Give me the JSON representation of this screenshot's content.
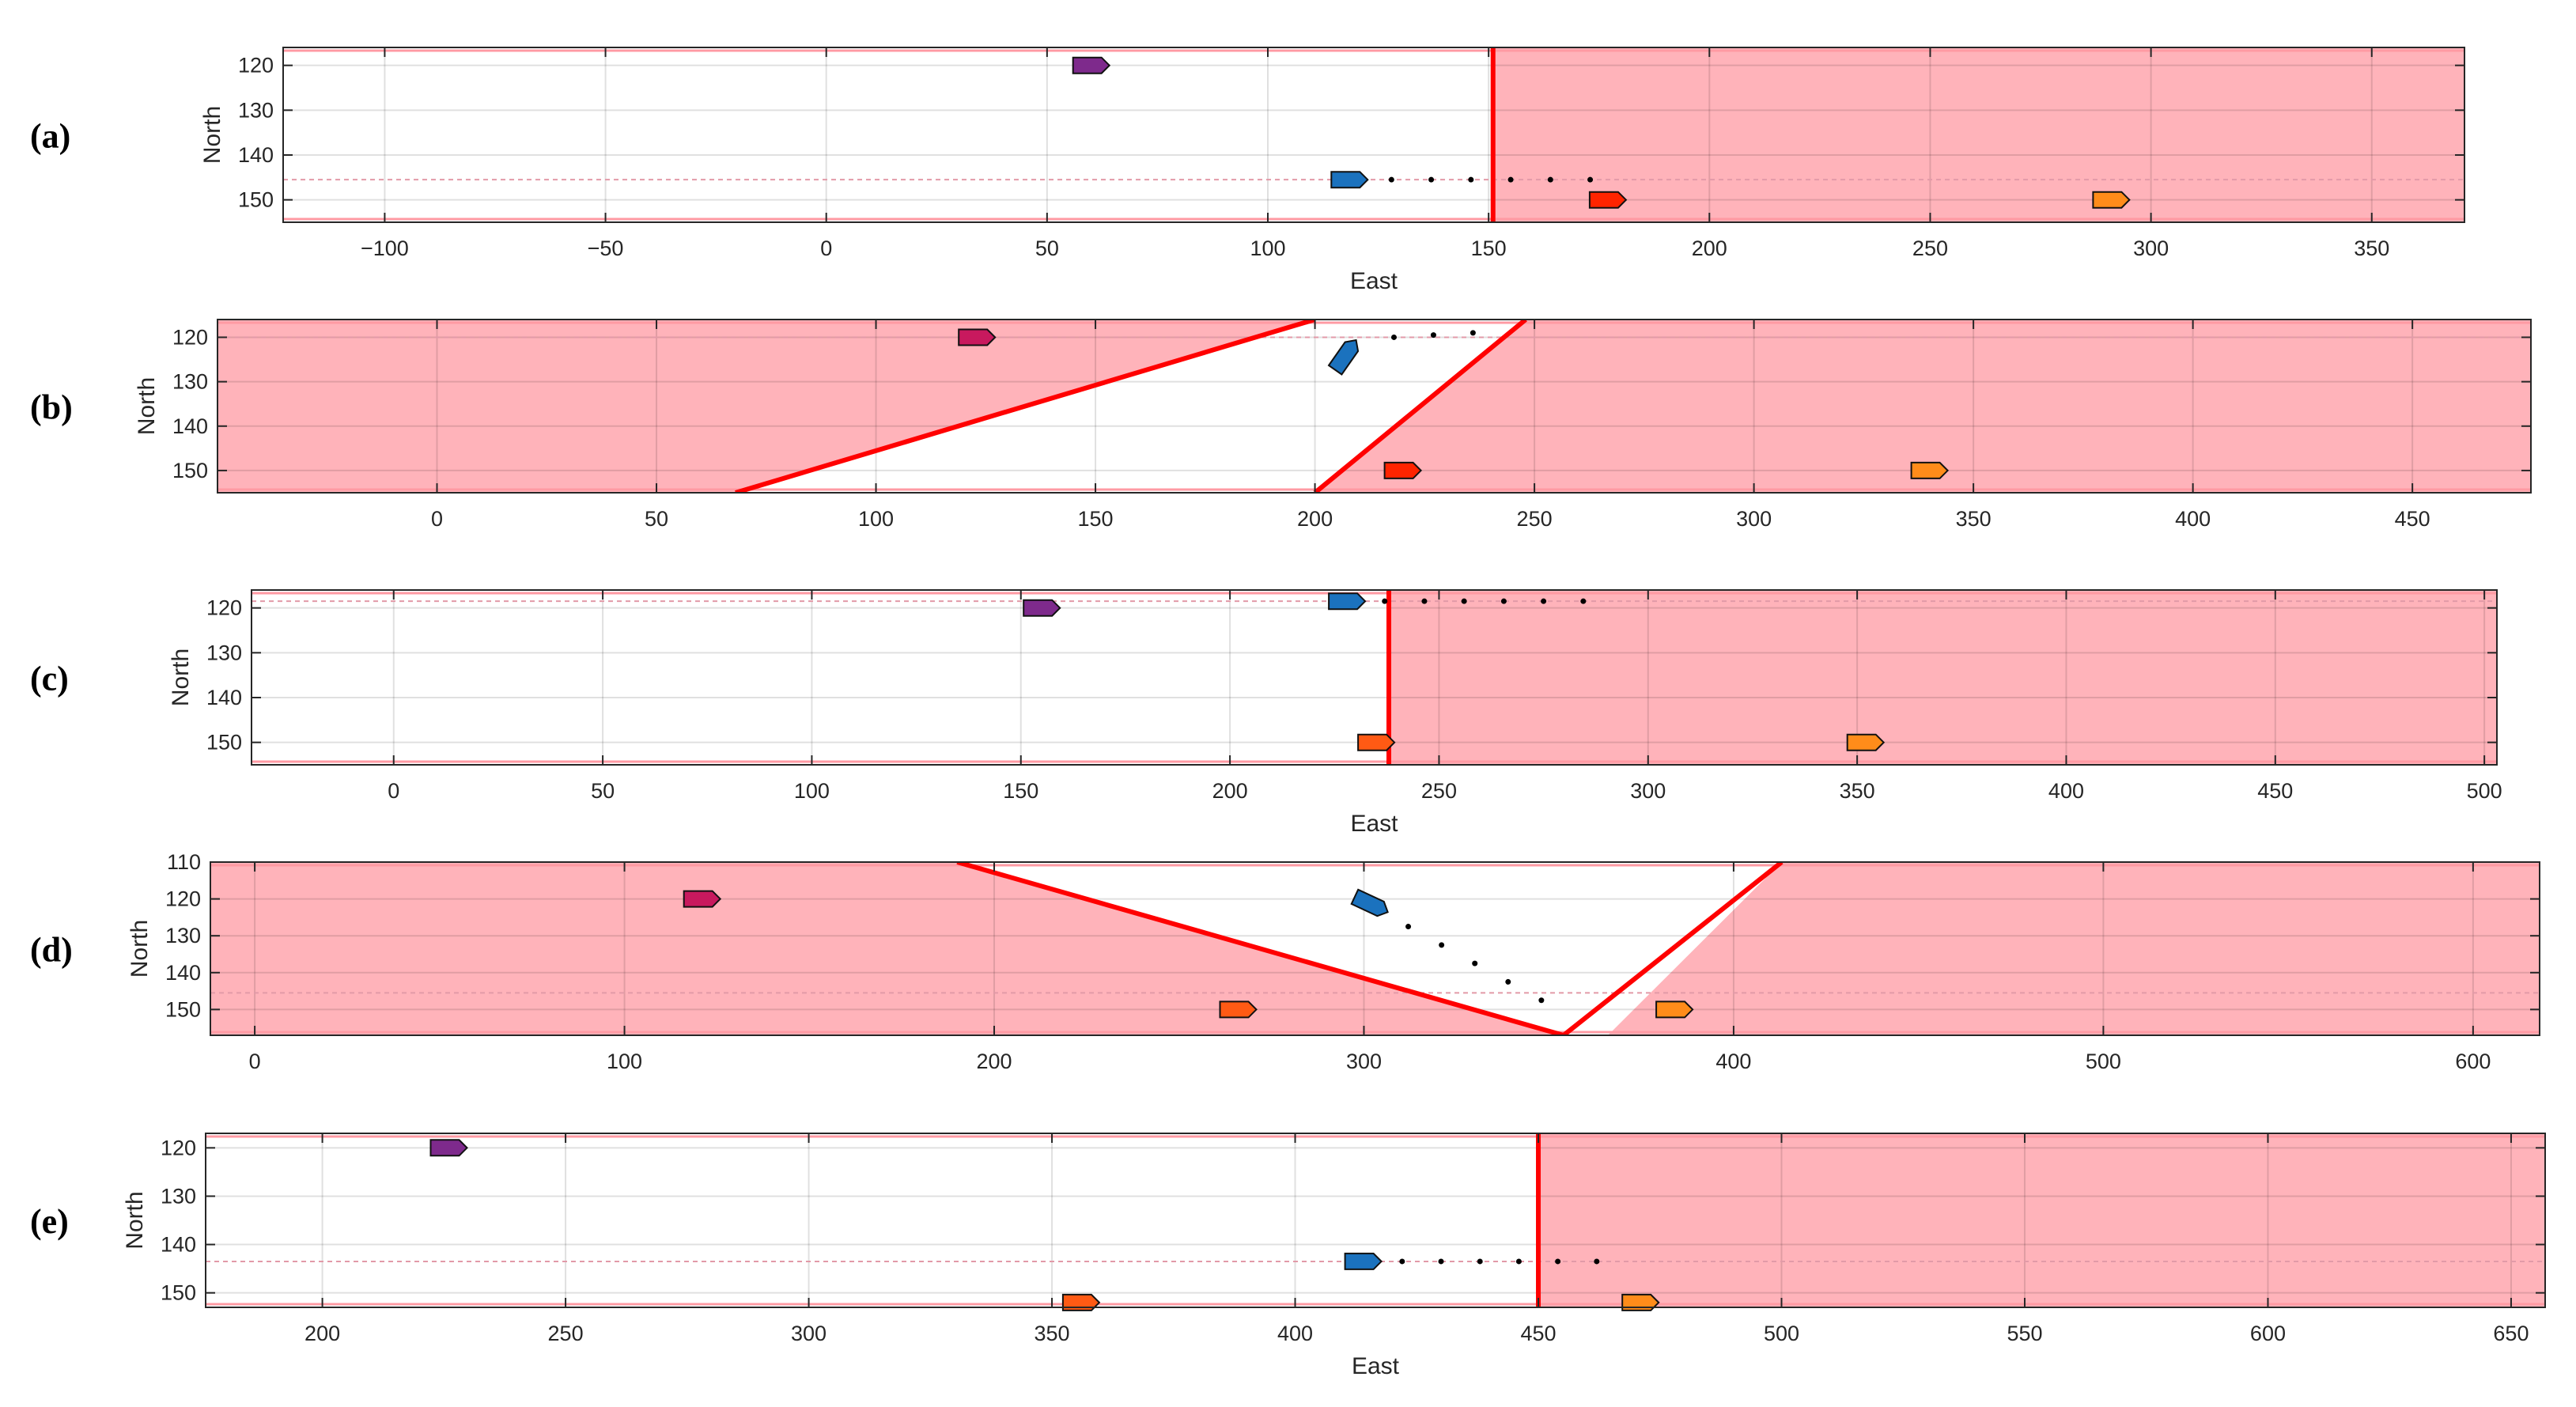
{
  "colors": {
    "danger_fill": "#ffb3ba",
    "boundary": "#ff0000",
    "grid": "#e1e1e1",
    "purple_ship": "#7e2a8c",
    "blue_ship": "#1b72be",
    "red_ship": "#ff2400",
    "orange_ship": "#ff8c1a",
    "crimson_ship": "#c8195e",
    "orange_red_ship": "#ff5a14"
  },
  "chart_data": [
    {
      "panel_label": "(a)",
      "type": "scatter",
      "xlabel": "East",
      "ylabel": "North",
      "xlim": [
        -123,
        371
      ],
      "ylim": [
        116,
        155
      ],
      "xticks": [
        -100,
        -50,
        0,
        50,
        100,
        150,
        200,
        250,
        300,
        350
      ],
      "yticks": [
        120,
        130,
        140,
        150
      ],
      "grid": true,
      "dashed_line_y": 145.5,
      "danger_polygons": [
        [
          [
            151,
            116
          ],
          [
            371,
            116
          ],
          [
            371,
            155
          ],
          [
            151,
            155
          ]
        ]
      ],
      "boundary_lines": [
        [
          [
            151,
            116
          ],
          [
            151,
            155
          ]
        ]
      ],
      "ships": [
        {
          "x": 60,
          "y": 120,
          "heading": 90,
          "color": "#7e2a8c"
        },
        {
          "x": 118.5,
          "y": 145.5,
          "heading": 90,
          "color": "#1b72be"
        },
        {
          "x": 177,
          "y": 150,
          "heading": 90,
          "color": "#ff2400"
        },
        {
          "x": 291,
          "y": 150,
          "heading": 90,
          "color": "#ff8c1a"
        }
      ],
      "predicted_path": [
        [
          128,
          145.5
        ],
        [
          137,
          145.5
        ],
        [
          146,
          145.5
        ],
        [
          155,
          145.5
        ],
        [
          164,
          145.5
        ],
        [
          173,
          145.5
        ]
      ]
    },
    {
      "panel_label": "(b)",
      "type": "scatter",
      "xlabel": "",
      "ylabel": "North",
      "xlim": [
        -50,
        477
      ],
      "ylim": [
        116,
        155
      ],
      "xticks": [
        0,
        50,
        100,
        150,
        200,
        250,
        300,
        350,
        400,
        450
      ],
      "yticks": [
        120,
        130,
        140,
        150
      ],
      "grid": true,
      "dashed_line_y": 120,
      "danger_polygons": [
        [
          [
            -50,
            116
          ],
          [
            200,
            116
          ],
          [
            68,
            155
          ],
          [
            -50,
            155
          ]
        ],
        [
          [
            248,
            116
          ],
          [
            477,
            116
          ],
          [
            477,
            155
          ],
          [
            200,
            155
          ]
        ]
      ],
      "boundary_lines": [
        [
          [
            200,
            116
          ],
          [
            68,
            155
          ]
        ],
        [
          [
            248,
            116
          ],
          [
            200,
            155
          ]
        ]
      ],
      "ships": [
        {
          "x": 123,
          "y": 120,
          "heading": 90,
          "color": "#c8195e"
        },
        {
          "x": 207,
          "y": 124,
          "heading": 35,
          "color": "#1b72be"
        },
        {
          "x": 220,
          "y": 150,
          "heading": 90,
          "color": "#ff2400"
        },
        {
          "x": 340,
          "y": 150,
          "heading": 90,
          "color": "#ff8c1a"
        }
      ],
      "predicted_path": [
        [
          218,
          120
        ],
        [
          227,
          119.5
        ],
        [
          236,
          119
        ]
      ]
    },
    {
      "panel_label": "(c)",
      "type": "scatter",
      "xlabel": "East",
      "ylabel": "North",
      "xlim": [
        -34,
        503
      ],
      "ylim": [
        116,
        155
      ],
      "xticks": [
        0,
        50,
        100,
        150,
        200,
        250,
        300,
        350,
        400,
        450,
        500
      ],
      "yticks": [
        120,
        130,
        140,
        150
      ],
      "grid": true,
      "dashed_line_y": 118.5,
      "danger_polygons": [
        [
          [
            238,
            116
          ],
          [
            503,
            116
          ],
          [
            503,
            155
          ],
          [
            238,
            155
          ]
        ]
      ],
      "boundary_lines": [
        [
          [
            238,
            116
          ],
          [
            238,
            155
          ]
        ]
      ],
      "ships": [
        {
          "x": 155,
          "y": 120,
          "heading": 90,
          "color": "#7e2a8c"
        },
        {
          "x": 228,
          "y": 118.5,
          "heading": 90,
          "color": "#1b72be"
        },
        {
          "x": 235,
          "y": 150,
          "heading": 90,
          "color": "#ff5a14"
        },
        {
          "x": 352,
          "y": 150,
          "heading": 90,
          "color": "#ff8c1a"
        }
      ],
      "predicted_path": [
        [
          237,
          118.5
        ],
        [
          246.5,
          118.5
        ],
        [
          256,
          118.5
        ],
        [
          265.5,
          118.5
        ],
        [
          275,
          118.5
        ],
        [
          284.5,
          118.5
        ]
      ]
    },
    {
      "panel_label": "(d)",
      "type": "scatter",
      "xlabel": "",
      "ylabel": "North",
      "xlim": [
        -12,
        618
      ],
      "ylim": [
        110,
        157
      ],
      "xticks": [
        0,
        100,
        200,
        300,
        400,
        500,
        600
      ],
      "yticks": [
        110,
        120,
        130,
        140,
        150
      ],
      "grid": true,
      "dashed_line_y": 145.5,
      "danger_polygons": [
        [
          [
            -12,
            110
          ],
          [
            190,
            110
          ],
          [
            354,
            157
          ],
          [
            -12,
            157
          ]
        ],
        [
          [
            413,
            110
          ],
          [
            618,
            110
          ],
          [
            618,
            157
          ],
          [
            366,
            157
          ]
        ]
      ],
      "boundary_lines": [
        [
          [
            190,
            110
          ],
          [
            354,
            157
          ]
        ],
        [
          [
            413,
            110
          ],
          [
            354,
            157
          ]
        ]
      ],
      "ships": [
        {
          "x": 121,
          "y": 120,
          "heading": 90,
          "color": "#c8195e"
        },
        {
          "x": 302,
          "y": 121.5,
          "heading": 115,
          "color": "#1b72be"
        },
        {
          "x": 266,
          "y": 150,
          "heading": 90,
          "color": "#ff5a14"
        },
        {
          "x": 384,
          "y": 150,
          "heading": 90,
          "color": "#ff8c1a"
        }
      ],
      "predicted_path": [
        [
          312,
          127.5
        ],
        [
          321,
          132.5
        ],
        [
          330,
          137.5
        ],
        [
          339,
          142.5
        ],
        [
          348,
          147.5
        ]
      ]
    },
    {
      "panel_label": "(e)",
      "type": "scatter",
      "xlabel": "East",
      "ylabel": "North",
      "xlim": [
        176,
        657
      ],
      "ylim": [
        117,
        153
      ],
      "xticks": [
        200,
        250,
        300,
        350,
        400,
        450,
        500,
        550,
        600,
        650
      ],
      "yticks": [
        120,
        130,
        140,
        150
      ],
      "grid": true,
      "dashed_line_y": 143.5,
      "danger_polygons": [
        [
          [
            450,
            117
          ],
          [
            657,
            117
          ],
          [
            657,
            153
          ],
          [
            450,
            153
          ]
        ]
      ],
      "boundary_lines": [
        [
          [
            450,
            117
          ],
          [
            450,
            153
          ]
        ]
      ],
      "ships": [
        {
          "x": 226,
          "y": 120,
          "heading": 90,
          "color": "#7e2a8c"
        },
        {
          "x": 414,
          "y": 143.5,
          "heading": 90,
          "color": "#1b72be"
        },
        {
          "x": 356,
          "y": 152,
          "heading": 90,
          "color": "#ff5a14"
        },
        {
          "x": 471,
          "y": 152,
          "heading": 90,
          "color": "#ff8c1a"
        }
      ],
      "predicted_path": [
        [
          422,
          143.5
        ],
        [
          430,
          143.5
        ],
        [
          438,
          143.5
        ],
        [
          446,
          143.5
        ],
        [
          454,
          143.5
        ],
        [
          462,
          143.5
        ]
      ]
    }
  ]
}
